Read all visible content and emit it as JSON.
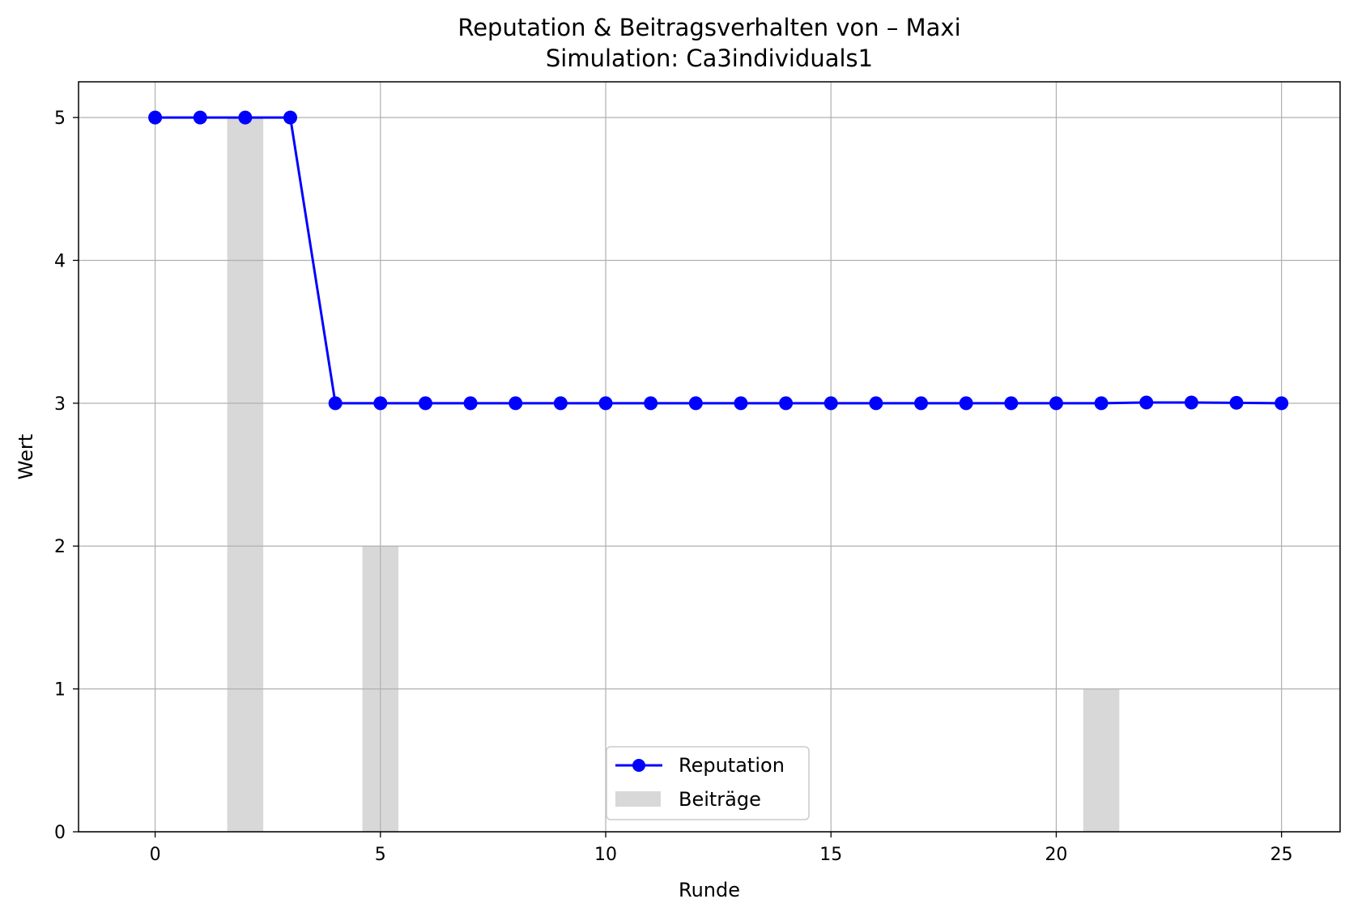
{
  "chart_data": {
    "type": "line",
    "title": "Reputation & Beitragsverhalten von – Maxi",
    "subtitle": "Simulation: Ca3individuals1",
    "xlabel": "Runde",
    "ylabel": "Wert",
    "xlim": [
      -1.7,
      26.3
    ],
    "ylim": [
      0,
      5.25
    ],
    "xticks": [
      "0",
      "5",
      "10",
      "15",
      "20",
      "25"
    ],
    "yticks": [
      "0",
      "1",
      "2",
      "3",
      "4",
      "5"
    ],
    "grid": true,
    "legend_position": "bottom-center",
    "series": [
      {
        "name": "Reputation",
        "kind": "line",
        "color": "#0000ff",
        "x": [
          0,
          1,
          2,
          3,
          4,
          5,
          6,
          7,
          8,
          9,
          10,
          11,
          12,
          13,
          14,
          15,
          16,
          17,
          18,
          19,
          20,
          21,
          22,
          23,
          24,
          25
        ],
        "values": [
          5,
          5,
          5,
          5,
          3,
          3,
          3,
          3,
          3,
          3,
          3,
          3,
          3,
          3,
          3,
          3,
          3,
          3,
          3,
          3,
          3,
          3,
          3.005,
          3.005,
          3.003,
          3.0
        ]
      },
      {
        "name": "Beiträge",
        "kind": "bar",
        "color": "#d8d8d8",
        "x": [
          2,
          5,
          21
        ],
        "values": [
          5,
          2,
          1
        ]
      }
    ]
  }
}
